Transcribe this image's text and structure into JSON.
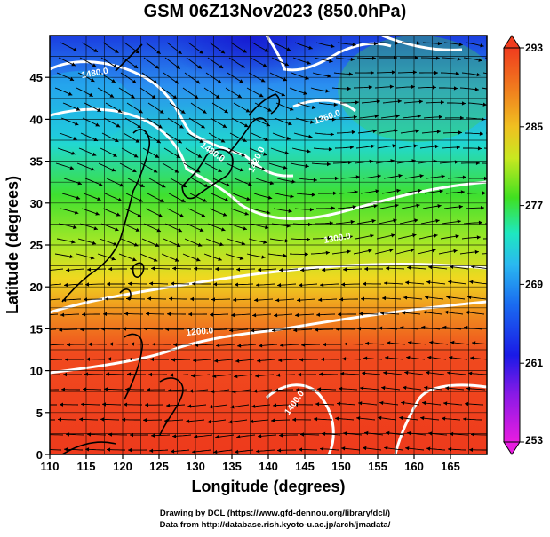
{
  "title": "GSM 06Z13Nov2023 (850.0hPa)",
  "xlabel": "Longitude (degrees)",
  "ylabel": "Latitude  (degrees)",
  "x_ticks": [
    "110",
    "115",
    "120",
    "125",
    "130",
    "135",
    "140",
    "145",
    "150",
    "155",
    "160",
    "165"
  ],
  "y_ticks": [
    "0",
    "5",
    "10",
    "15",
    "20",
    "25",
    "30",
    "35",
    "40",
    "45"
  ],
  "colorbar": {
    "ticks": [
      "253",
      "261",
      "269",
      "277",
      "285",
      "293"
    ],
    "min": 253,
    "max": 293,
    "colors": [
      "#e81ce0",
      "#1a1ae6",
      "#2aa2f0",
      "#1ee8c0",
      "#40e020",
      "#e6e61e",
      "#f0a020",
      "#f03c1e"
    ]
  },
  "contours": {
    "color": "#ffffff",
    "labels": [
      "1480.0",
      "1420.0",
      "1360.0",
      "1300.0",
      "1200.0",
      "1400.0",
      "1480.0"
    ]
  },
  "credits": {
    "line1": "Drawing by DCL (https://www.gfd-dennou.org/library/dcl/)",
    "line2": "Data from http://database.rish.kyoto-u.ac.jp/arch/jmadata/"
  },
  "map": {
    "lon_range": [
      110,
      170
    ],
    "lat_range": [
      0,
      50
    ],
    "grid": true,
    "field": "temperature (K) shaded, geopotential height contours, wind streamlines"
  }
}
